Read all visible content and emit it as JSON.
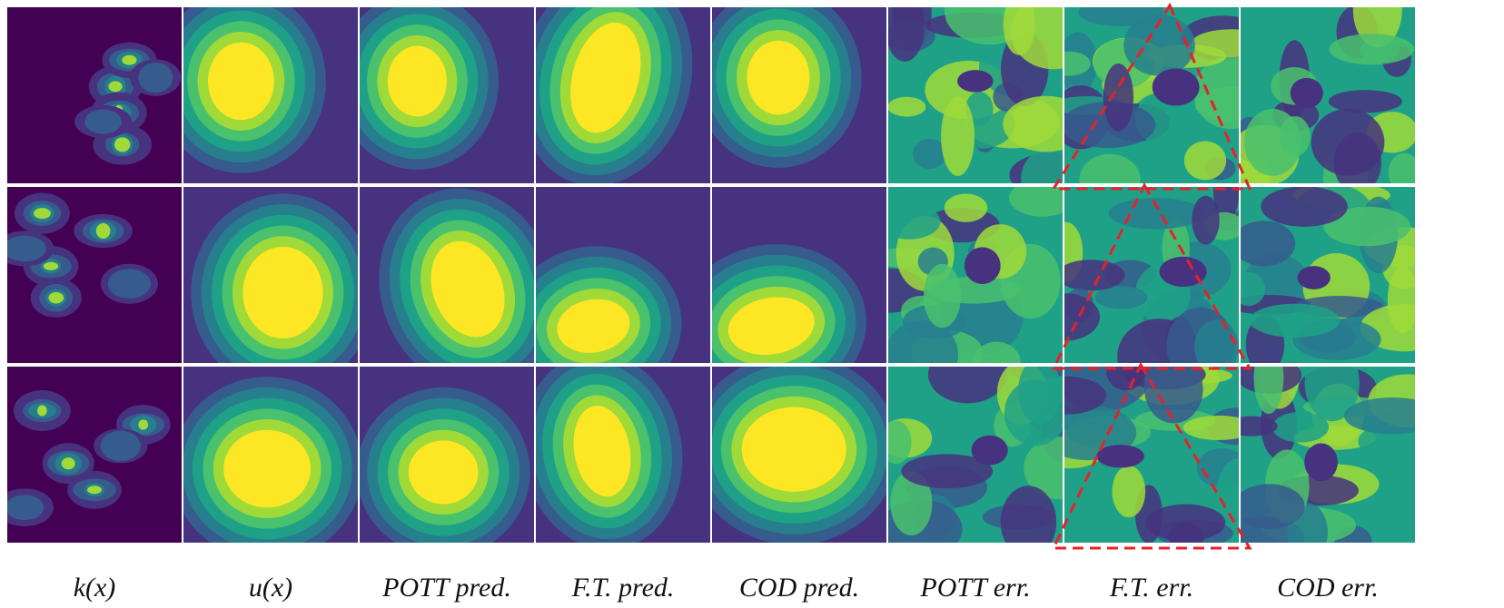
{
  "columns": [
    {
      "id": "kx",
      "label": "k(x)"
    },
    {
      "id": "ux",
      "label": "u(x)"
    },
    {
      "id": "pott_pred",
      "label": "POTT pred."
    },
    {
      "id": "ft_pred",
      "label": "F.T. pred."
    },
    {
      "id": "cod_pred",
      "label": "COD pred."
    },
    {
      "id": "pott_err",
      "label": "POTT err."
    },
    {
      "id": "ft_err",
      "label": "F.T. err."
    },
    {
      "id": "cod_err",
      "label": "COD err."
    }
  ],
  "rows": 3,
  "colormap": "viridis",
  "colors": {
    "viridis": [
      "#440154",
      "#46327e",
      "#365c8d",
      "#277f8e",
      "#1fa187",
      "#4ac16d",
      "#a0da39",
      "#fde725"
    ],
    "grid_line": "#ffffff",
    "annotation": "#e8202a"
  },
  "annotation": {
    "shape": "dashed-triangles",
    "column": "ft_err"
  }
}
